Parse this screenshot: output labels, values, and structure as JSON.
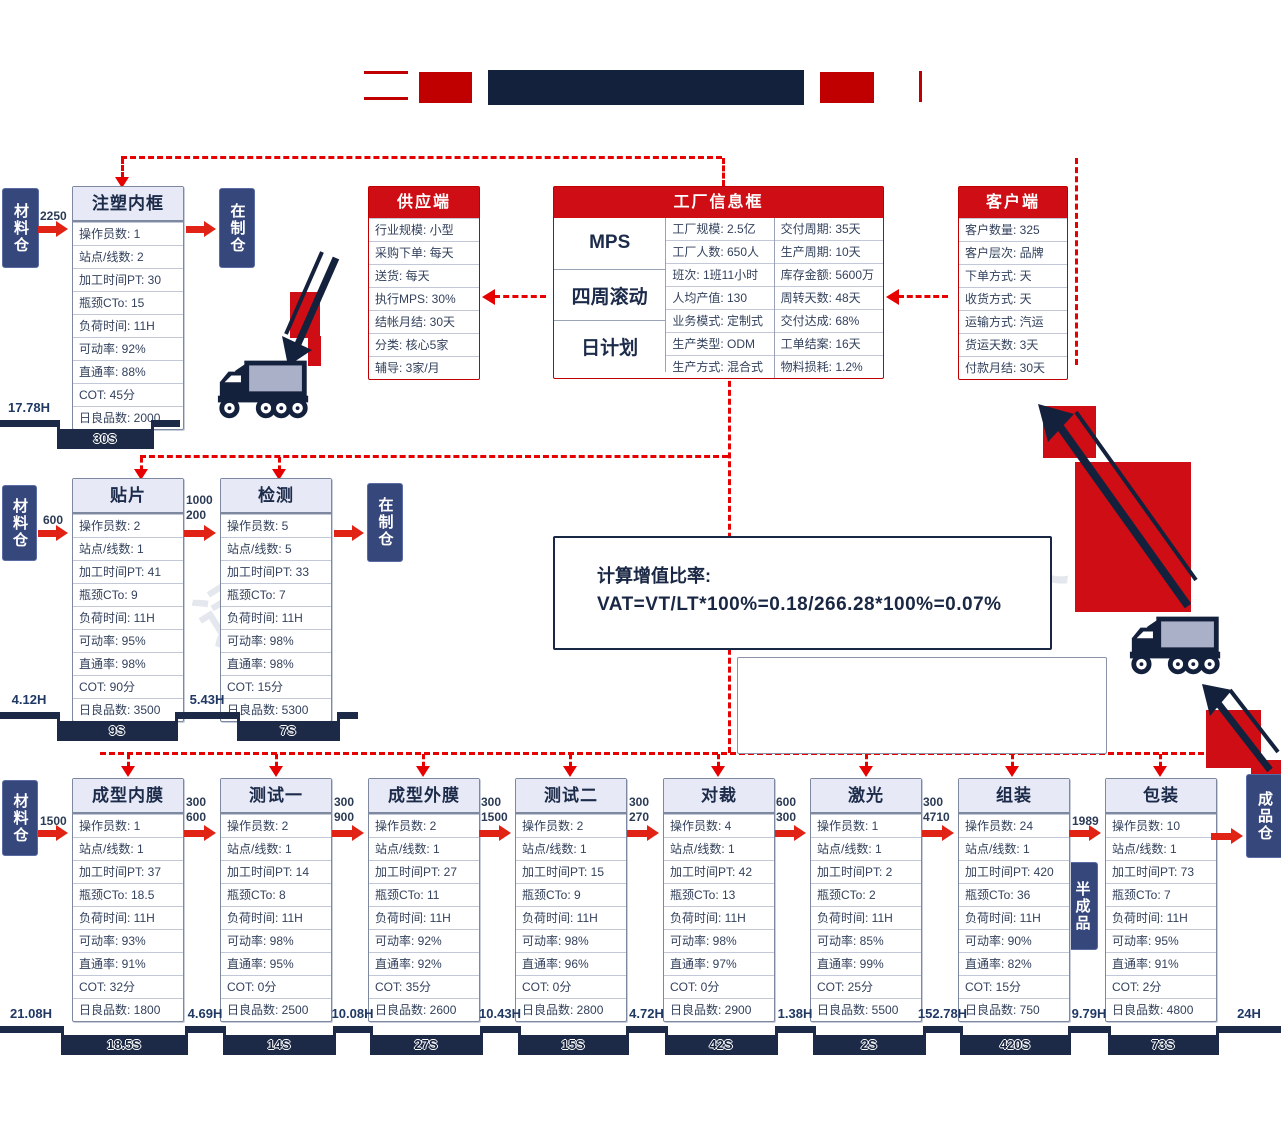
{
  "colors": {
    "accent_red": "#CE0E14",
    "navy": "#14213D",
    "arrow_red": "#E02315",
    "dashed_red": "#E60000"
  },
  "watermark": "远大",
  "warehouse_labels": {
    "material": "材料仓",
    "wip": "在制仓",
    "semi": "半成品",
    "finished": "成品仓"
  },
  "info_boxes": {
    "supply": {
      "title": "供应端",
      "rows": [
        "行业规模: 小型",
        "采购下单: 每天",
        "送货: 每天",
        "执行MPS: 30%",
        "结帐月结: 30天",
        "分类: 核心5家",
        "辅导: 3家/月"
      ]
    },
    "factory": {
      "title": "工厂信息框",
      "plans": [
        "MPS",
        "四周滚动",
        "日计划"
      ],
      "col1": [
        "工厂规模: 2.5亿",
        "工厂人数: 650人",
        "班次: 1班11小时",
        "人均产值: 130",
        "业务模式: 定制式",
        "生产类型: ODM",
        "生产方式: 混合式"
      ],
      "col2": [
        "交付周期: 35天",
        "生产周期: 10天",
        "库存金额: 5600万",
        "周转天数: 48天",
        "交付达成: 68%",
        "工单结案: 16天",
        "物料损耗: 1.2%"
      ]
    },
    "customer": {
      "title": "客户端",
      "rows": [
        "客户数量: 325",
        "客户层次: 品牌",
        "下单方式: 天",
        "收货方式: 天",
        "运输方式: 汽运",
        "货运天数: 3天",
        "付款月结: 30天"
      ]
    }
  },
  "process_rows": [
    [
      {
        "title": "注塑内框",
        "rows": [
          "操作员数: 1",
          "站点/线数: 2",
          "加工时间PT: 30",
          "瓶颈CTo: 15",
          "负荷时间: 11H",
          "可动率: 92%",
          "直通率: 88%",
          "COT: 45分",
          "日良品数: 2000"
        ]
      }
    ],
    [
      {
        "title": "贴片",
        "rows": [
          "操作员数: 2",
          "站点/线数: 1",
          "加工时间PT: 41",
          "瓶颈CTo: 9",
          "负荷时间: 11H",
          "可动率: 95%",
          "直通率: 98%",
          "COT: 90分",
          "日良品数: 3500"
        ]
      },
      {
        "title": "检测",
        "rows": [
          "操作员数: 5",
          "站点/线数: 5",
          "加工时间PT: 33",
          "瓶颈CTo: 7",
          "负荷时间: 11H",
          "可动率: 98%",
          "直通率: 98%",
          "COT: 15分",
          "日良品数: 5300"
        ]
      }
    ],
    [
      {
        "title": "成型内膜",
        "rows": [
          "操作员数: 1",
          "站点/线数: 1",
          "加工时间PT: 37",
          "瓶颈CTo: 18.5",
          "负荷时间: 11H",
          "可动率: 93%",
          "直通率: 91%",
          "COT: 32分",
          "日良品数: 1800"
        ]
      },
      {
        "title": "测试一",
        "rows": [
          "操作员数: 2",
          "站点/线数: 1",
          "加工时间PT: 14",
          "瓶颈CTo: 8",
          "负荷时间: 11H",
          "可动率: 98%",
          "直通率: 95%",
          "COT: 0分",
          "日良品数: 2500"
        ]
      },
      {
        "title": "成型外膜",
        "rows": [
          "操作员数: 2",
          "站点/线数: 1",
          "加工时间PT: 27",
          "瓶颈CTo: 11",
          "负荷时间: 11H",
          "可动率: 92%",
          "直通率: 92%",
          "COT: 35分",
          "日良品数: 2600"
        ]
      },
      {
        "title": "测试二",
        "rows": [
          "操作员数: 2",
          "站点/线数: 1",
          "加工时间PT: 15",
          "瓶颈CTo: 9",
          "负荷时间: 11H",
          "可动率: 98%",
          "直通率: 96%",
          "COT: 0分",
          "日良品数: 2800"
        ]
      },
      {
        "title": "对裁",
        "rows": [
          "操作员数: 4",
          "站点/线数: 1",
          "加工时间PT: 42",
          "瓶颈CTo: 13",
          "负荷时间: 11H",
          "可动率: 98%",
          "直通率: 97%",
          "COT: 0分",
          "日良品数: 2900"
        ]
      },
      {
        "title": "激光",
        "rows": [
          "操作员数: 1",
          "站点/线数: 1",
          "加工时间PT: 2",
          "瓶颈CTo: 2",
          "负荷时间: 11H",
          "可动率: 85%",
          "直通率: 99%",
          "COT: 25分",
          "日良品数: 5500"
        ]
      },
      {
        "title": "组装",
        "rows": [
          "操作员数: 24",
          "站点/线数: 1",
          "加工时间PT: 420",
          "瓶颈CTo: 36",
          "负荷时间: 11H",
          "可动率: 90%",
          "直通率: 82%",
          "COT: 15分",
          "日良品数: 750"
        ]
      },
      {
        "title": "包装",
        "rows": [
          "操作员数: 10",
          "站点/线数: 1",
          "加工时间PT: 73",
          "瓶颈CTo: 7",
          "负荷时间: 11H",
          "可动率: 95%",
          "直通率: 91%",
          "COT: 2分",
          "日良品数: 4800"
        ]
      }
    ]
  ],
  "flow_labels": {
    "row1": [
      [
        "2250"
      ]
    ],
    "row2": [
      [
        "600"
      ],
      [
        "1000",
        "200"
      ]
    ],
    "row3": [
      [
        "1500"
      ],
      [
        "300",
        "600"
      ],
      [
        "300",
        "900"
      ],
      [
        "300",
        "1500"
      ],
      [
        "300",
        "270"
      ],
      [
        "600",
        "300"
      ],
      [
        "300",
        "4710"
      ],
      [
        "1989"
      ]
    ]
  },
  "vat_box": {
    "line1": "计算增值比率:",
    "line2": "VAT=VT/LT*100%=0.18/266.28*100%=0.07%"
  },
  "timelines": [
    {
      "segments": [
        {
          "type": "wait",
          "label": "17.78H"
        },
        {
          "type": "process",
          "label": "30S"
        },
        {
          "type": "wait",
          "label": ""
        }
      ]
    },
    {
      "segments": [
        {
          "type": "wait",
          "label": "4.12H"
        },
        {
          "type": "process",
          "label": "9S"
        },
        {
          "type": "wait",
          "label": "5.43H"
        },
        {
          "type": "process",
          "label": "7S"
        },
        {
          "type": "wait",
          "label": ""
        }
      ]
    },
    {
      "segments": [
        {
          "type": "wait",
          "label": "21.08H"
        },
        {
          "type": "process",
          "label": "18.5S"
        },
        {
          "type": "wait",
          "label": "4.69H"
        },
        {
          "type": "process",
          "label": "14S"
        },
        {
          "type": "wait",
          "label": "10.08H"
        },
        {
          "type": "process",
          "label": "27S"
        },
        {
          "type": "wait",
          "label": "10.43H"
        },
        {
          "type": "process",
          "label": "15S"
        },
        {
          "type": "wait",
          "label": "4.72H"
        },
        {
          "type": "process",
          "label": "42S"
        },
        {
          "type": "wait",
          "label": "1.38H"
        },
        {
          "type": "process",
          "label": "2S"
        },
        {
          "type": "wait",
          "label": "152.78H"
        },
        {
          "type": "process",
          "label": "420S"
        },
        {
          "type": "wait",
          "label": "9.79H"
        },
        {
          "type": "process",
          "label": "73S"
        },
        {
          "type": "wait",
          "label": "24H"
        }
      ]
    }
  ]
}
